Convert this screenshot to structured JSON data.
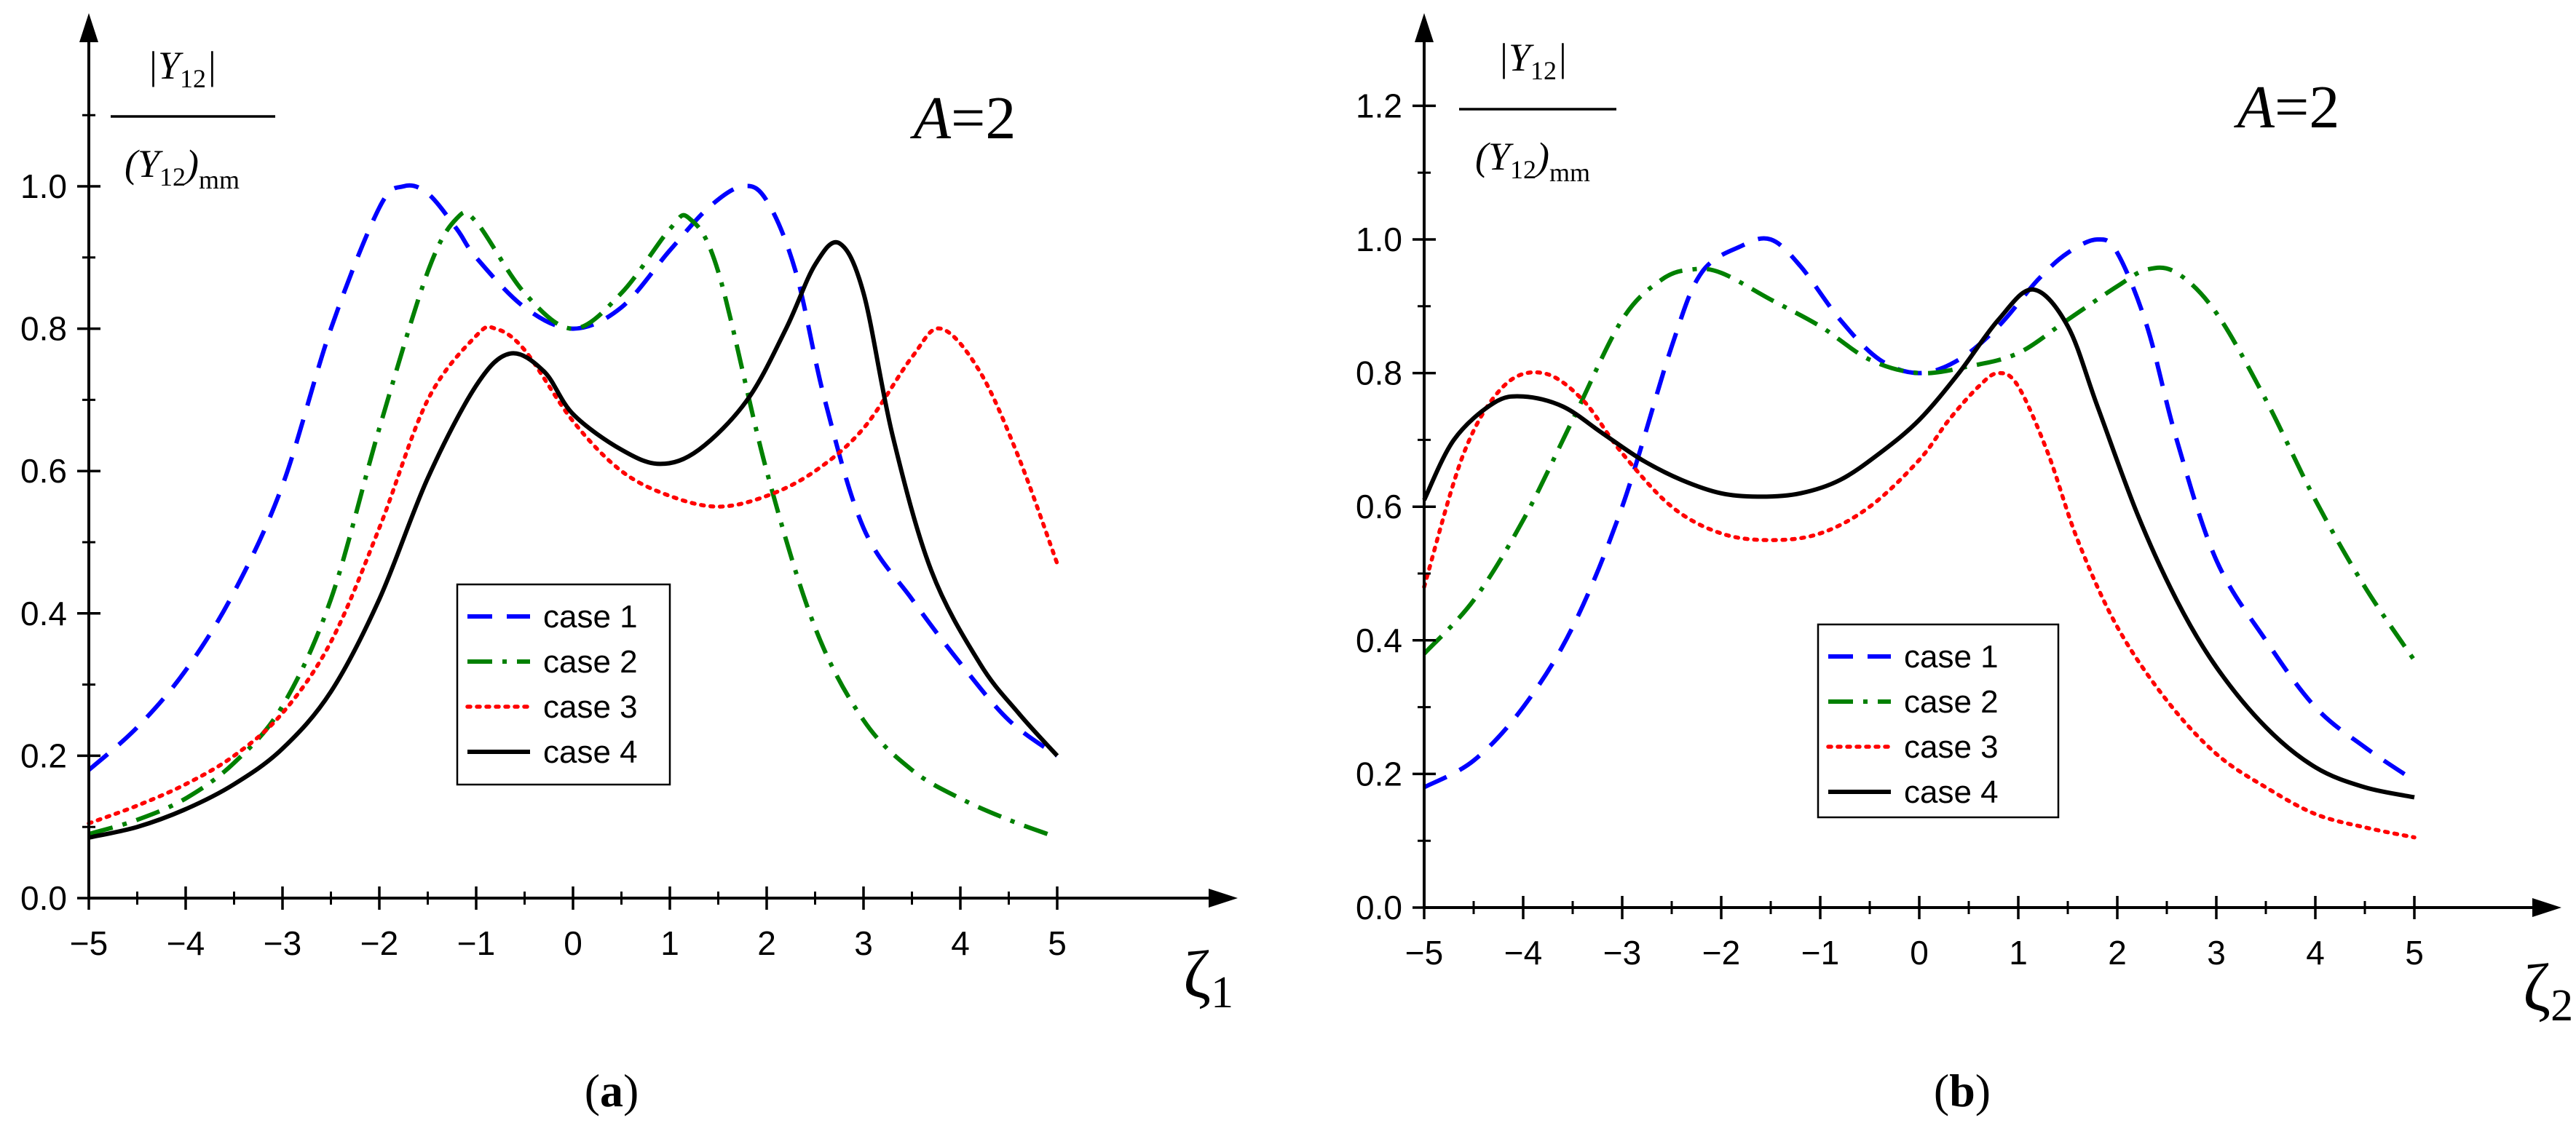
{
  "chart_data": [
    {
      "type": "line",
      "panel_label": "(a)",
      "panel_letter": "a",
      "title": "A=2",
      "title_italic": "A",
      "title_rest": "=2",
      "ylabel_num": "|Y12|",
      "ylabel_den": "(Y12)mm",
      "xlabel": "ζ1",
      "xlabel_main": "ζ",
      "xlabel_sub": "1",
      "xlim": [
        -5,
        6.7
      ],
      "ylim": [
        0,
        1.2
      ],
      "xticks": [
        -5,
        -4,
        -3,
        -2,
        -1,
        0,
        1,
        2,
        3,
        4,
        5
      ],
      "xtick_labels": [
        "−5",
        "−4",
        "−3",
        "−2",
        "−1",
        "0",
        "1",
        "2",
        "3",
        "4",
        "5"
      ],
      "yticks": [
        0,
        0.2,
        0.4,
        0.6,
        0.8,
        1.0
      ],
      "ytick_labels": [
        "0.0",
        "0.2",
        "0.4",
        "0.6",
        "0.8",
        "1.0"
      ],
      "legend_position": "center",
      "series": [
        {
          "name": "case 1",
          "color": "#0000ff",
          "style": "dashed",
          "x": [
            -5,
            -4.5,
            -4,
            -3.5,
            -3,
            -2.5,
            -2,
            -1.75,
            -1.5,
            -1.2,
            -1,
            -0.5,
            0,
            0.5,
            1,
            1.4,
            1.75,
            2,
            2.3,
            2.6,
            3,
            3.5,
            4,
            4.5,
            5
          ],
          "y": [
            0.18,
            0.24,
            0.32,
            0.43,
            0.58,
            0.8,
            0.97,
            1.0,
            0.99,
            0.94,
            0.9,
            0.83,
            0.8,
            0.83,
            0.91,
            0.97,
            1.0,
            0.98,
            0.88,
            0.7,
            0.52,
            0.42,
            0.33,
            0.25,
            0.2
          ]
        },
        {
          "name": "case 2",
          "color": "#008000",
          "style": "dashdot",
          "x": [
            -5,
            -4.5,
            -4,
            -3.5,
            -3,
            -2.5,
            -2,
            -1.5,
            -1.2,
            -1,
            -0.5,
            0,
            0.5,
            1,
            1.2,
            1.5,
            2,
            2.5,
            3,
            3.5,
            4,
            4.5,
            4.9
          ],
          "y": [
            0.09,
            0.11,
            0.14,
            0.19,
            0.27,
            0.42,
            0.66,
            0.88,
            0.955,
            0.95,
            0.85,
            0.8,
            0.85,
            0.94,
            0.955,
            0.88,
            0.6,
            0.38,
            0.25,
            0.18,
            0.14,
            0.11,
            0.09
          ]
        },
        {
          "name": "case 3",
          "color": "#ff0000",
          "style": "dotted",
          "x": [
            -5,
            -4.5,
            -4,
            -3.5,
            -3,
            -2.5,
            -2,
            -1.5,
            -1,
            -0.8,
            -0.5,
            0,
            0.5,
            1,
            1.5,
            2,
            2.5,
            3,
            3.5,
            3.8,
            4.2,
            4.6,
            5
          ],
          "y": [
            0.105,
            0.13,
            0.16,
            0.2,
            0.26,
            0.36,
            0.52,
            0.7,
            0.79,
            0.8,
            0.77,
            0.67,
            0.6,
            0.565,
            0.55,
            0.565,
            0.6,
            0.66,
            0.76,
            0.8,
            0.74,
            0.62,
            0.47
          ]
        },
        {
          "name": "case 4",
          "color": "#000000",
          "style": "solid",
          "x": [
            -5,
            -4.5,
            -4,
            -3.5,
            -3,
            -2.5,
            -2,
            -1.5,
            -1,
            -0.65,
            -0.3,
            0,
            0.5,
            0.9,
            1.3,
            1.8,
            2.2,
            2.5,
            2.75,
            3,
            3.3,
            3.7,
            4.2,
            4.6,
            5
          ],
          "y": [
            0.085,
            0.1,
            0.125,
            0.16,
            0.21,
            0.29,
            0.42,
            0.59,
            0.72,
            0.765,
            0.74,
            0.68,
            0.63,
            0.61,
            0.63,
            0.7,
            0.8,
            0.89,
            0.92,
            0.85,
            0.65,
            0.46,
            0.33,
            0.26,
            0.2
          ]
        }
      ]
    },
    {
      "type": "line",
      "panel_label": "(b)",
      "panel_letter": "b",
      "title": "A=2",
      "title_italic": "A",
      "title_rest": "=2",
      "ylabel_num": "|Y12|",
      "ylabel_den": "(Y12)mm",
      "xlabel": "ζ2",
      "xlabel_main": "ζ",
      "xlabel_sub": "2",
      "xlim": [
        -5,
        6.3
      ],
      "ylim": [
        0,
        1.3
      ],
      "xticks": [
        -5,
        -4,
        -3,
        -2,
        -1,
        0,
        1,
        2,
        3,
        4,
        5
      ],
      "xtick_labels": [
        "−5",
        "−4",
        "−3",
        "−2",
        "−1",
        "0",
        "1",
        "2",
        "3",
        "4",
        "5"
      ],
      "yticks": [
        0,
        0.2,
        0.4,
        0.6,
        0.8,
        1.0,
        1.2
      ],
      "ytick_labels": [
        "0.0",
        "0.2",
        "0.4",
        "0.6",
        "0.8",
        "1.0",
        "1.2"
      ],
      "legend_position": "center-left",
      "series": [
        {
          "name": "case 1",
          "color": "#0000ff",
          "style": "dashed",
          "x": [
            -5,
            -4.5,
            -4,
            -3.5,
            -3,
            -2.5,
            -2.2,
            -1.8,
            -1.5,
            -1.2,
            -0.8,
            -0.4,
            0,
            0.4,
            0.8,
            1.2,
            1.5,
            1.8,
            2,
            2.3,
            2.6,
            3,
            3.5,
            4,
            4.5,
            5
          ],
          "y": [
            0.18,
            0.22,
            0.3,
            0.42,
            0.6,
            0.84,
            0.95,
            0.99,
            1.0,
            0.96,
            0.88,
            0.82,
            0.8,
            0.82,
            0.87,
            0.94,
            0.98,
            1.0,
            0.98,
            0.87,
            0.7,
            0.52,
            0.4,
            0.3,
            0.24,
            0.19
          ]
        },
        {
          "name": "case 2",
          "color": "#008000",
          "style": "dashdot",
          "x": [
            -5,
            -4.5,
            -4,
            -3.5,
            -3,
            -2.6,
            -2.3,
            -2,
            -1.5,
            -1,
            -0.5,
            0,
            0.5,
            1,
            1.5,
            2,
            2.3,
            2.6,
            3,
            3.5,
            4,
            4.5,
            5
          ],
          "y": [
            0.38,
            0.46,
            0.58,
            0.73,
            0.88,
            0.94,
            0.955,
            0.95,
            0.91,
            0.87,
            0.82,
            0.8,
            0.81,
            0.83,
            0.88,
            0.93,
            0.955,
            0.95,
            0.89,
            0.76,
            0.61,
            0.48,
            0.37
          ]
        },
        {
          "name": "case 3",
          "color": "#ff0000",
          "style": "dotted",
          "x": [
            -5,
            -4.6,
            -4.2,
            -3.8,
            -3.4,
            -3,
            -2.5,
            -2,
            -1.5,
            -1,
            -0.5,
            0,
            0.3,
            0.6,
            0.8,
            1,
            1.3,
            1.6,
            2,
            2.5,
            3,
            3.5,
            4,
            4.5,
            5
          ],
          "y": [
            0.48,
            0.68,
            0.78,
            0.8,
            0.76,
            0.68,
            0.6,
            0.56,
            0.55,
            0.56,
            0.6,
            0.67,
            0.73,
            0.78,
            0.8,
            0.78,
            0.68,
            0.55,
            0.42,
            0.31,
            0.23,
            0.18,
            0.14,
            0.12,
            0.105
          ]
        },
        {
          "name": "case 4",
          "color": "#000000",
          "style": "solid",
          "x": [
            -5,
            -4.7,
            -4.3,
            -4,
            -3.6,
            -3.2,
            -2.8,
            -2.4,
            -2,
            -1.6,
            -1.2,
            -0.8,
            -0.4,
            0,
            0.4,
            0.8,
            1.15,
            1.5,
            1.8,
            2.2,
            2.6,
            3,
            3.5,
            4,
            4.5,
            5
          ],
          "y": [
            0.61,
            0.7,
            0.755,
            0.765,
            0.75,
            0.71,
            0.67,
            0.64,
            0.62,
            0.615,
            0.62,
            0.64,
            0.68,
            0.73,
            0.8,
            0.88,
            0.925,
            0.87,
            0.75,
            0.59,
            0.46,
            0.36,
            0.27,
            0.21,
            0.18,
            0.165
          ]
        }
      ]
    }
  ]
}
